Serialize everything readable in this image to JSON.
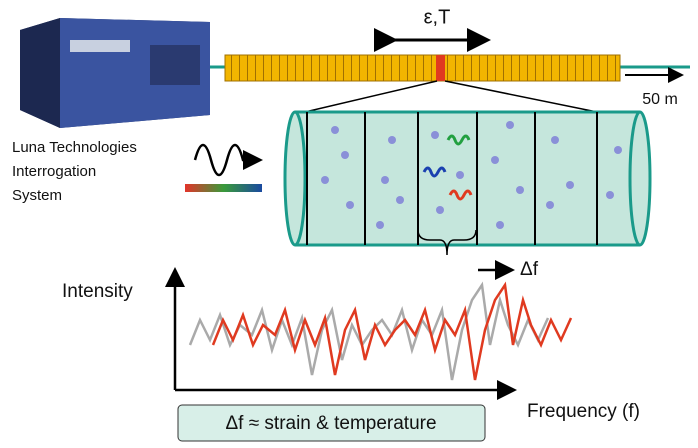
{
  "fiber": {
    "strain_temp_label": "ε,T",
    "scale_label": "50 m"
  },
  "instrument": {
    "label_lines": [
      "Luna Technologies",
      "Interrogation",
      "System"
    ]
  },
  "plot": {
    "y_label": "Intensity",
    "shift_label": "Δf",
    "x_label": "Frequency (f)",
    "caption": "Δf ≈ strain & temperature"
  }
}
